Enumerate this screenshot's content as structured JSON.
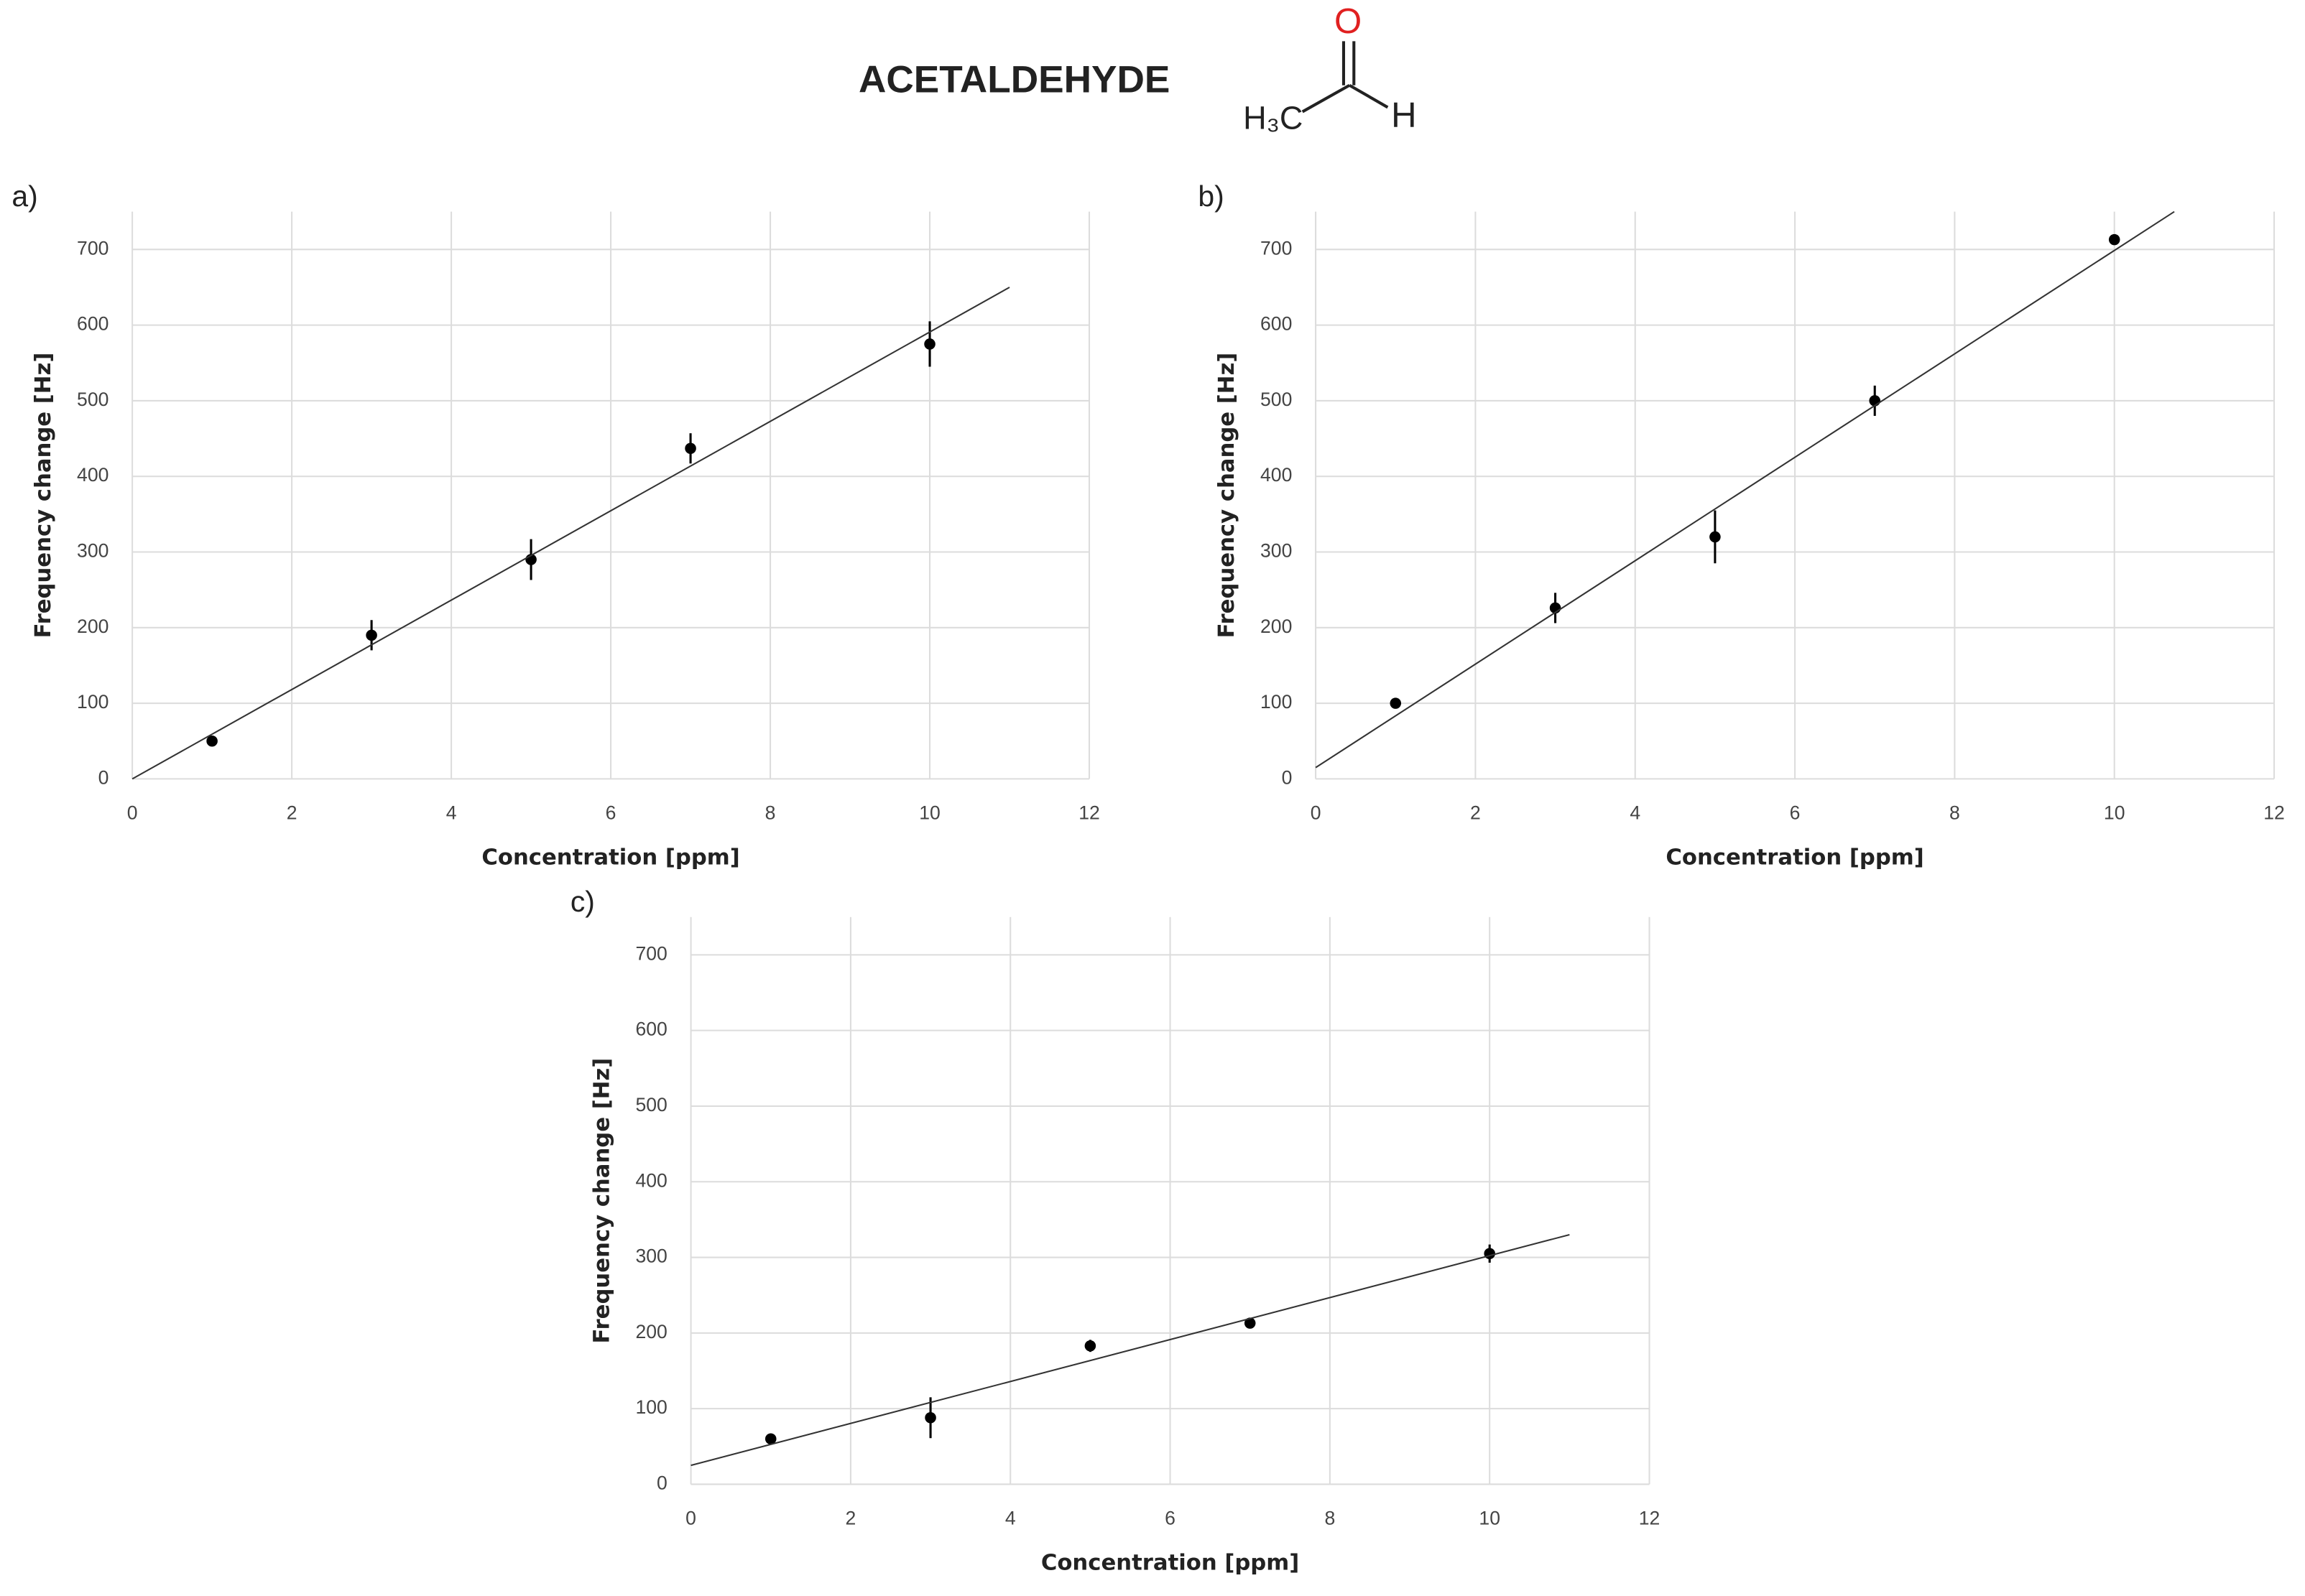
{
  "title": "ACETALDEHYDE",
  "molecule": {
    "oxygen": "O",
    "methyl": "H₃C",
    "hydrogen": "H"
  },
  "chart_data": [
    {
      "type": "scatter",
      "panel_label": "a)",
      "x_label": "Concentration [ppm]",
      "y_label": "Frequency change [Hz]",
      "x": [
        1,
        3,
        5,
        7,
        10
      ],
      "values": [
        50,
        190,
        290,
        437,
        575
      ],
      "errors": [
        5,
        20,
        27,
        20,
        30
      ],
      "color": "#000000",
      "trendline": {
        "x": [
          0,
          11
        ],
        "values": [
          0,
          650
        ]
      },
      "xlim": [
        0,
        12
      ],
      "ylim": [
        0,
        750
      ],
      "xticks": [
        0,
        2,
        4,
        6,
        8,
        10,
        12
      ],
      "yticks": [
        0,
        100,
        200,
        300,
        400,
        500,
        600,
        700
      ],
      "grid": true
    },
    {
      "type": "scatter",
      "panel_label": "b)",
      "x_label": "Concentration [ppm]",
      "y_label": "Frequency change [Hz]",
      "x": [
        1,
        3,
        5,
        7,
        10
      ],
      "values": [
        100,
        226,
        320,
        500,
        713
      ],
      "errors": [
        5,
        20,
        35,
        20,
        5
      ],
      "color": "#000000",
      "trendline": {
        "x": [
          0,
          10.75
        ],
        "values": [
          15,
          750
        ]
      },
      "xlim": [
        0,
        12
      ],
      "ylim": [
        0,
        750
      ],
      "xticks": [
        0,
        2,
        4,
        6,
        8,
        10,
        12
      ],
      "yticks": [
        0,
        100,
        200,
        300,
        400,
        500,
        600,
        700
      ],
      "grid": true
    },
    {
      "type": "scatter",
      "panel_label": "c)",
      "x_label": "Concentration [ppm]",
      "y_label": "Frequency change [Hz]",
      "x": [
        1,
        3,
        5,
        7,
        10
      ],
      "values": [
        60,
        88,
        183,
        213,
        305
      ],
      "errors": [
        5,
        27,
        8,
        5,
        12
      ],
      "color": "#000000",
      "trendline": {
        "x": [
          0,
          11
        ],
        "values": [
          25,
          330
        ]
      },
      "xlim": [
        0,
        12
      ],
      "ylim": [
        0,
        750
      ],
      "xticks": [
        0,
        2,
        4,
        6,
        8,
        10,
        12
      ],
      "yticks": [
        0,
        100,
        200,
        300,
        400,
        500,
        600,
        700
      ],
      "grid": true
    }
  ]
}
